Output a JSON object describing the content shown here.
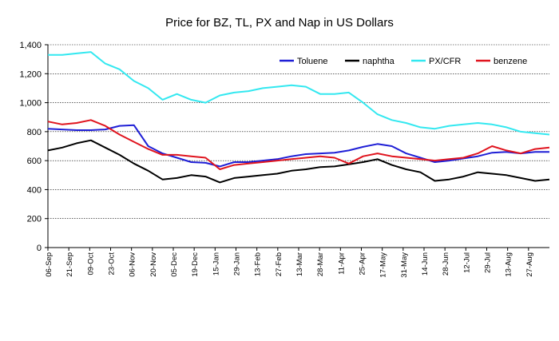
{
  "chart_data": {
    "type": "line",
    "title": "Price for BZ, TL, PX and Nap in US Dollars",
    "xlabel": "",
    "ylabel": "",
    "ylim": [
      0,
      1400
    ],
    "yticks": [
      0,
      200,
      400,
      600,
      800,
      "1,000",
      "1,200",
      "1,400"
    ],
    "grid": "horizontal dotted",
    "legend_position": "top-right",
    "x_tick_labels": [
      "06-Sep",
      "21-Sep",
      "09-Oct",
      "23-Oct",
      "06-Nov",
      "20-Nov",
      "05-Dec",
      "19-Dec",
      "15-Jan",
      "29-Jan",
      "13-Feb",
      "27-Feb",
      "13-Mar",
      "28-Mar",
      "11-Apr",
      "25-Apr",
      "17-May",
      "31-May",
      "14-Jun",
      "28-Jun",
      "12-Jul",
      "29-Jul",
      "13-Aug",
      "27-Aug"
    ],
    "series": [
      {
        "name": "Toluene",
        "color": "#1f1fd6",
        "values": [
          820,
          815,
          810,
          810,
          815,
          840,
          845,
          700,
          650,
          620,
          590,
          585,
          560,
          590,
          590,
          600,
          610,
          630,
          645,
          650,
          655,
          670,
          695,
          715,
          700,
          650,
          620,
          590,
          600,
          615,
          630,
          655,
          660,
          650,
          660,
          660
        ]
      },
      {
        "name": "naphtha",
        "color": "#000000",
        "values": [
          670,
          690,
          720,
          740,
          690,
          640,
          580,
          530,
          470,
          480,
          500,
          490,
          450,
          480,
          490,
          500,
          510,
          530,
          540,
          555,
          560,
          575,
          590,
          610,
          570,
          540,
          520,
          460,
          470,
          490,
          520,
          510,
          500,
          480,
          460,
          470
        ]
      },
      {
        "name": "PX/CFR",
        "color": "#33e8f0",
        "values": [
          1330,
          1330,
          1340,
          1350,
          1270,
          1230,
          1150,
          1100,
          1020,
          1060,
          1020,
          1000,
          1050,
          1070,
          1080,
          1100,
          1110,
          1120,
          1110,
          1060,
          1060,
          1070,
          1000,
          920,
          880,
          860,
          830,
          820,
          840,
          850,
          860,
          850,
          830,
          800,
          790,
          780
        ]
      },
      {
        "name": "benzene",
        "color": "#e0141e",
        "values": [
          870,
          850,
          860,
          880,
          840,
          780,
          730,
          680,
          640,
          640,
          630,
          620,
          540,
          570,
          580,
          590,
          600,
          610,
          620,
          630,
          620,
          580,
          630,
          650,
          630,
          620,
          610,
          600,
          610,
          620,
          650,
          700,
          670,
          650,
          680,
          690
        ]
      }
    ]
  }
}
